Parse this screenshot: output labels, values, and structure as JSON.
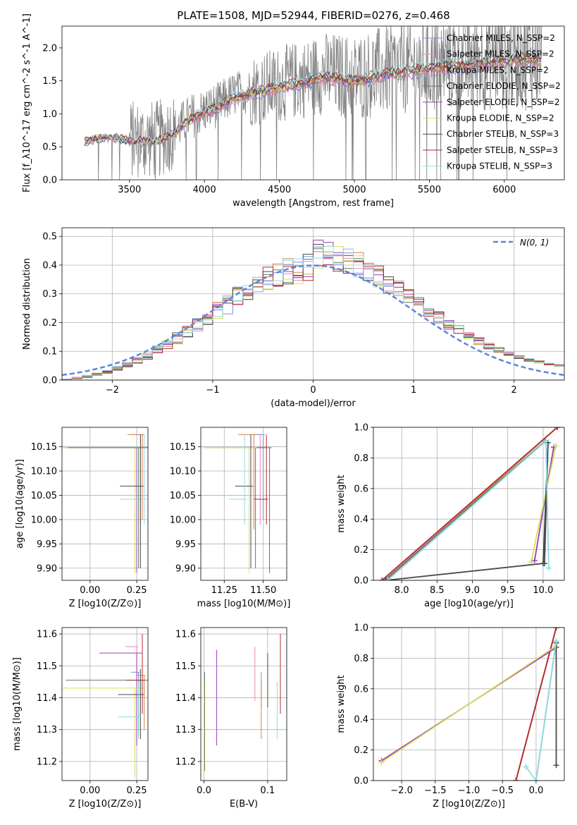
{
  "figure": {
    "title": "PLATE=1508, MJD=52944, FIBERID=0276, z=0.468"
  },
  "models": [
    {
      "name": "Chabrier MILES, N_SSP=2",
      "color": "#7b8fd6"
    },
    {
      "name": "Salpeter MILES, N_SSP=2",
      "color": "#e58ac0"
    },
    {
      "name": "Kroupa MILES, N_SSP=2",
      "color": "#d9824a"
    },
    {
      "name": "Chabrier ELODIE, N_SSP=2",
      "color": "#5f7d5f"
    },
    {
      "name": "Salpeter ELODIE, N_SSP=2",
      "color": "#9b3fb5"
    },
    {
      "name": "Kroupa ELODIE, N_SSP=2",
      "color": "#d4e05a"
    },
    {
      "name": "Chabrier STELIB, N_SSP=3",
      "color": "#4a4a4a"
    },
    {
      "name": "Salpeter STELIB, N_SSP=3",
      "color": "#b22d2d"
    },
    {
      "name": "Kroupa STELIB, N_SSP=3",
      "color": "#8fdce6"
    }
  ],
  "chart_data": [
    {
      "id": "spectrum",
      "type": "line",
      "xlabel": "wavelength [Angstrom, rest frame]",
      "ylabel": "Flux [f_λ10^-17 erg cm^-2 s^-1 A^-1]",
      "xlim": [
        3050,
        6400
      ],
      "ylim": [
        0,
        2.33
      ],
      "xticks": [
        3500,
        4000,
        4500,
        5000,
        5500,
        6000
      ],
      "yticks": [
        0.0,
        0.5,
        1.0,
        1.5,
        2.0
      ],
      "data_range": [
        3200,
        6250
      ],
      "continuum": {
        "x": [
          3200,
          3300,
          3400,
          3500,
          3600,
          3700,
          3800,
          3900,
          4000,
          4100,
          4200,
          4300,
          4400,
          4500,
          4600,
          4700,
          4800,
          4900,
          5000,
          5100,
          5200,
          5300,
          5400,
          5500,
          5600,
          5700,
          5800,
          5900,
          6000,
          6100,
          6200
        ],
        "y": [
          0.6,
          0.65,
          0.66,
          0.62,
          0.6,
          0.62,
          0.75,
          0.95,
          1.05,
          1.15,
          1.3,
          1.35,
          1.4,
          1.45,
          1.5,
          1.55,
          1.62,
          1.58,
          1.55,
          1.6,
          1.65,
          1.7,
          1.72,
          1.75,
          1.78,
          1.8,
          1.82,
          1.85,
          1.88,
          1.9,
          1.9
        ]
      },
      "grid": false,
      "legend": "top-right"
    },
    {
      "id": "residuals",
      "type": "line",
      "xlabel": "(data-model)/error",
      "ylabel": "Normed distribution",
      "xlim": [
        -2.5,
        2.5
      ],
      "ylim": [
        0,
        0.53
      ],
      "xticks": [
        -2,
        -1,
        0,
        1,
        2
      ],
      "yticks": [
        0.0,
        0.1,
        0.2,
        0.3,
        0.4,
        0.5
      ],
      "gaussian_label": "N(0, 1)",
      "grid": true,
      "legend": "top-right"
    },
    {
      "id": "age-vs-z",
      "type": "scatter",
      "xlabel": "Z [log10(Z/Z⊙)]",
      "ylabel": "age [log10(age/yr)]",
      "xlim": [
        -0.15,
        0.31
      ],
      "ylim": [
        9.875,
        10.19
      ],
      "xticks": [
        0.0,
        0.25
      ],
      "yticks": [
        9.9,
        9.95,
        10.0,
        10.05,
        10.1,
        10.15
      ],
      "points": [
        {
          "x": 0.25,
          "y": 10.148,
          "xerr": 0.39,
          "ylo": 9.89,
          "yhi": 10.148,
          "m": 4
        },
        {
          "x": 0.27,
          "y": 10.175,
          "xerr": 0.04,
          "ylo": 9.99,
          "yhi": 10.175,
          "m": 1
        },
        {
          "x": 0.28,
          "y": 10.175,
          "xerr": 0.08,
          "ylo": 10.0,
          "yhi": 10.175,
          "m": 2
        },
        {
          "x": 0.24,
          "y": 10.148,
          "xerr": 0.39,
          "ylo": 9.89,
          "yhi": 10.148,
          "m": 5
        },
        {
          "x": 0.29,
          "y": 10.042,
          "xerr": 0.13,
          "ylo": 9.99,
          "yhi": 10.175,
          "m": 8
        },
        {
          "x": 0.27,
          "y": 10.069,
          "xerr": 0.11,
          "ylo": 9.9,
          "yhi": 10.175,
          "m": 6
        },
        {
          "x": 0.26,
          "y": 10.148,
          "xerr": 0.38,
          "ylo": 9.9,
          "yhi": 10.148,
          "m": 3
        }
      ],
      "grid": true
    },
    {
      "id": "age-vs-mass",
      "type": "scatter",
      "xlabel": "mass [log10(M/M⊙)]",
      "ylabel": "",
      "xlim": [
        11.1,
        11.65
      ],
      "ylim": [
        9.875,
        10.19
      ],
      "xticks": [
        11.25,
        11.5
      ],
      "yticks": [
        9.9,
        9.95,
        10.0,
        10.05,
        10.1,
        10.15
      ],
      "points": [
        {
          "x": 11.45,
          "y": 10.148,
          "xerr": 0.32,
          "ylo": 9.9,
          "yhi": 10.148,
          "m": 3
        },
        {
          "x": 11.48,
          "y": 10.175,
          "xerr": 0.06,
          "ylo": 9.99,
          "yhi": 10.175,
          "m": 1
        },
        {
          "x": 11.5,
          "y": 10.175,
          "xerr": 0.06,
          "ylo": 10.0,
          "yhi": 10.175,
          "m": 0
        },
        {
          "x": 11.44,
          "y": 10.175,
          "xerr": 0.1,
          "ylo": 9.98,
          "yhi": 10.175,
          "m": 2
        },
        {
          "x": 11.54,
          "y": 10.148,
          "xerr": 0.08,
          "ylo": 9.89,
          "yhi": 10.148,
          "m": 4
        },
        {
          "x": 11.41,
          "y": 10.148,
          "xerr": 0.3,
          "ylo": 9.89,
          "yhi": 10.148,
          "m": 5
        },
        {
          "x": 11.42,
          "y": 10.069,
          "xerr": 0.1,
          "ylo": 9.9,
          "yhi": 10.175,
          "m": 6
        },
        {
          "x": 11.52,
          "y": 10.042,
          "xerr": 0.08,
          "ylo": 9.99,
          "yhi": 10.175,
          "m": 7
        },
        {
          "x": 11.38,
          "y": 10.042,
          "xerr": 0.1,
          "ylo": 9.99,
          "yhi": 10.175,
          "m": 8
        }
      ],
      "grid": true
    },
    {
      "id": "weight-vs-age",
      "type": "line",
      "xlabel": "age [log10(age/yr)]",
      "ylabel": "mass weight",
      "xlim": [
        7.6,
        10.3
      ],
      "ylim": [
        0,
        1.0
      ],
      "xticks": [
        8.0,
        8.5,
        9.0,
        9.5,
        10.0
      ],
      "yticks": [
        0.0,
        0.2,
        0.4,
        0.6,
        0.8,
        1.0
      ],
      "series": [
        {
          "m": 0,
          "x": [
            7.75,
            10.2
          ],
          "y": [
            0.0,
            1.0
          ]
        },
        {
          "m": 1,
          "x": [
            7.75,
            10.2
          ],
          "y": [
            0.0,
            1.0
          ]
        },
        {
          "m": 2,
          "x": [
            7.78,
            10.2
          ],
          "y": [
            0.0,
            1.0
          ]
        },
        {
          "m": 7,
          "x": [
            7.72,
            10.2
          ],
          "y": [
            0.0,
            1.0
          ]
        },
        {
          "m": 3,
          "x": [
            7.76,
            10.03
          ],
          "y": [
            0.0,
            0.91
          ]
        },
        {
          "m": 4,
          "x": [
            9.88,
            10.15
          ],
          "y": [
            0.13,
            0.87
          ]
        },
        {
          "m": 5,
          "x": [
            9.83,
            10.18
          ],
          "y": [
            0.12,
            0.88
          ]
        },
        {
          "m": 6,
          "x": [
            7.78,
            10.0,
            10.07,
            10.02
          ],
          "y": [
            0.0,
            0.11,
            0.9,
            0.11
          ]
        },
        {
          "m": 8,
          "x": [
            7.8,
            10.04,
            10.08
          ],
          "y": [
            0.0,
            0.91,
            0.08
          ]
        }
      ],
      "grid": true
    },
    {
      "id": "mass-vs-z",
      "type": "scatter",
      "xlabel": "Z [log10(Z/Z⊙)]",
      "ylabel": "mass [log10(M/M⊙)]",
      "xlim": [
        -0.15,
        0.31
      ],
      "ylim": [
        11.14,
        11.62
      ],
      "xticks": [
        0.0,
        0.25
      ],
      "yticks": [
        11.2,
        11.3,
        11.4,
        11.5,
        11.6
      ],
      "points": [
        {
          "x": 0.26,
          "y": 11.48,
          "xerr": 0.04,
          "ylo": 11.3,
          "yhi": 11.48,
          "m": 0
        },
        {
          "x": 0.25,
          "y": 11.56,
          "xerr": 0.06,
          "ylo": 11.25,
          "yhi": 11.56,
          "m": 1
        },
        {
          "x": 0.29,
          "y": 11.47,
          "xerr": 0.04,
          "ylo": 11.3,
          "yhi": 11.47,
          "m": 2
        },
        {
          "x": 0.26,
          "y": 11.455,
          "xerr": 0.39,
          "ylo": 11.28,
          "yhi": 11.455,
          "m": 3
        },
        {
          "x": 0.25,
          "y": 11.54,
          "xerr": 0.2,
          "ylo": 11.25,
          "yhi": 11.54,
          "m": 4
        },
        {
          "x": 0.24,
          "y": 11.43,
          "xerr": 0.39,
          "ylo": 11.15,
          "yhi": 11.43,
          "m": 5
        },
        {
          "x": 0.27,
          "y": 11.41,
          "xerr": 0.12,
          "ylo": 11.27,
          "yhi": 11.49,
          "m": 6
        },
        {
          "x": 0.28,
          "y": 11.455,
          "xerr": 0.09,
          "ylo": 11.35,
          "yhi": 11.6,
          "m": 7
        },
        {
          "x": 0.26,
          "y": 11.34,
          "xerr": 0.11,
          "ylo": 11.27,
          "yhi": 11.45,
          "m": 8
        }
      ],
      "grid": true
    },
    {
      "id": "mass-vs-ebv",
      "type": "scatter",
      "xlabel": "E(B-V)",
      "ylabel": "",
      "xlim": [
        -0.005,
        0.13
      ],
      "ylim": [
        11.14,
        11.62
      ],
      "xticks": [
        0.0,
        0.1
      ],
      "yticks": [
        11.2,
        11.3,
        11.4,
        11.5,
        11.6
      ],
      "points": [
        {
          "x": 0.09,
          "y": 11.42,
          "ylo": 11.37,
          "yhi": 11.48,
          "m": 0
        },
        {
          "x": 0.08,
          "y": 11.48,
          "ylo": 11.39,
          "yhi": 11.56,
          "m": 1
        },
        {
          "x": 0.09,
          "y": 11.35,
          "ylo": 11.27,
          "yhi": 11.45,
          "m": 2
        },
        {
          "x": 0.001,
          "y": 11.32,
          "ylo": 11.17,
          "yhi": 11.48,
          "m": 3
        },
        {
          "x": 0.02,
          "y": 11.4,
          "ylo": 11.25,
          "yhi": 11.55,
          "m": 4
        },
        {
          "x": 0.0,
          "y": 11.3,
          "ylo": 11.16,
          "yhi": 11.45,
          "m": 5
        },
        {
          "x": 0.1,
          "y": 11.46,
          "ylo": 11.37,
          "yhi": 11.54,
          "m": 6
        },
        {
          "x": 0.12,
          "y": 11.47,
          "ylo": 11.35,
          "yhi": 11.6,
          "m": 7
        },
        {
          "x": 0.115,
          "y": 11.36,
          "ylo": 11.27,
          "yhi": 11.45,
          "m": 8
        }
      ],
      "grid": true
    },
    {
      "id": "weight-vs-z",
      "type": "line",
      "xlabel": "Z [log10(Z/Z⊙)]",
      "ylabel": "mass weight",
      "xlim": [
        -2.42,
        0.42
      ],
      "ylim": [
        0,
        1.0
      ],
      "xticks": [
        -2.0,
        -1.5,
        -1.0,
        -0.5,
        0.0
      ],
      "yticks": [
        0.0,
        0.2,
        0.4,
        0.6,
        0.8,
        1.0
      ],
      "series": [
        {
          "m": 0,
          "x": [
            -0.3,
            0.3
          ],
          "y": [
            0.0,
            1.0
          ]
        },
        {
          "m": 1,
          "x": [
            -0.3,
            0.3
          ],
          "y": [
            0.0,
            1.0
          ]
        },
        {
          "m": 2,
          "x": [
            -0.3,
            0.3
          ],
          "y": [
            0.0,
            1.0
          ]
        },
        {
          "m": 7,
          "x": [
            -0.3,
            0.3
          ],
          "y": [
            0.0,
            1.0
          ]
        },
        {
          "m": 4,
          "x": [
            -2.3,
            0.3
          ],
          "y": [
            0.13,
            0.87
          ]
        },
        {
          "m": 5,
          "x": [
            -2.3,
            0.3
          ],
          "y": [
            0.12,
            0.88
          ]
        },
        {
          "m": 3,
          "x": [
            0.0,
            0.3
          ],
          "y": [
            0.0,
            0.91
          ]
        },
        {
          "m": 6,
          "x": [
            0.3,
            0.3
          ],
          "y": [
            0.1,
            0.9
          ]
        },
        {
          "m": 8,
          "x": [
            -0.15,
            0.0,
            0.3
          ],
          "y": [
            0.09,
            0.0,
            0.91
          ]
        }
      ],
      "grid": true
    }
  ]
}
